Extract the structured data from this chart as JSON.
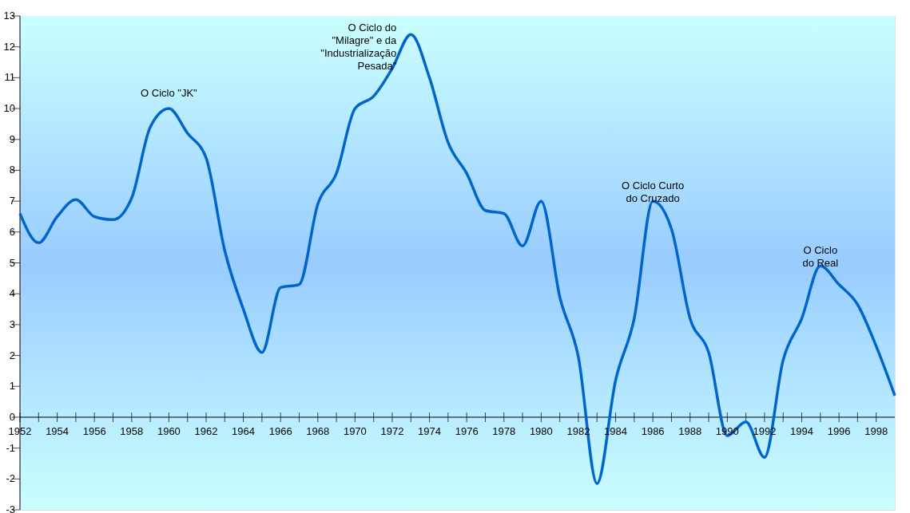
{
  "chart_data": {
    "type": "line",
    "x": [
      1952,
      1953,
      1954,
      1955,
      1956,
      1957,
      1958,
      1959,
      1960,
      1961,
      1962,
      1963,
      1964,
      1965,
      1966,
      1967,
      1968,
      1969,
      1970,
      1971,
      1972,
      1973,
      1974,
      1975,
      1976,
      1977,
      1978,
      1979,
      1980,
      1981,
      1982,
      1983,
      1984,
      1985,
      1986,
      1987,
      1988,
      1989,
      1990,
      1991,
      1992,
      1993,
      1994,
      1995,
      1996,
      1997,
      1998,
      1999
    ],
    "series": [
      {
        "color": "#0066cc",
        "values": [
          6.6,
          5.65,
          6.5,
          7.05,
          6.5,
          6.4,
          7.1,
          9.4,
          10.0,
          9.2,
          8.4,
          5.4,
          3.5,
          2.1,
          4.2,
          4.3,
          6.9,
          7.9,
          10.0,
          10.4,
          11.3,
          12.4,
          11.0,
          8.9,
          7.9,
          6.7,
          6.6,
          5.55,
          7.0,
          3.9,
          1.95,
          -2.15,
          1.2,
          3.2,
          7.0,
          6.1,
          3.2,
          2.1,
          -0.6,
          -0.15,
          -1.3,
          1.85,
          3.2,
          4.9,
          4.3,
          3.65,
          2.3,
          0.7
        ]
      }
    ],
    "xlim": [
      1952,
      1999
    ],
    "xticks": [
      1952,
      {
        "value": 1953,
        "label": null
      },
      1954,
      {
        "value": 1955,
        "label": null
      },
      1956,
      {
        "value": 1957,
        "label": null
      },
      1958,
      {
        "value": 1959,
        "label": null
      },
      1960,
      {
        "value": 1961,
        "label": null
      },
      1962,
      {
        "value": 1963,
        "label": null
      },
      1964,
      {
        "value": 1965,
        "label": null
      },
      1966,
      {
        "value": 1967,
        "label": null
      },
      1968,
      {
        "value": 1969,
        "label": null
      },
      1970,
      {
        "value": 1971,
        "label": null
      },
      1972,
      {
        "value": 1973,
        "label": null
      },
      1974,
      {
        "value": 1975,
        "label": null
      },
      1976,
      {
        "value": 1977,
        "label": null
      },
      1978,
      {
        "value": 1979,
        "label": null
      },
      1980,
      {
        "value": 1981,
        "label": null
      },
      1982,
      {
        "value": 1983,
        "label": null
      },
      1984,
      {
        "value": 1985,
        "label": null
      },
      1986,
      {
        "value": 1987,
        "label": null
      },
      1988,
      {
        "value": 1989,
        "label": null
      },
      1990,
      {
        "value": 1991,
        "label": null
      },
      1992,
      {
        "value": 1993,
        "label": null
      },
      1994,
      {
        "value": 1995,
        "label": null
      },
      1996,
      {
        "value": 1997,
        "label": null
      },
      1998
    ],
    "ylim": [
      -3,
      13
    ],
    "yticks": [
      -3,
      -2,
      -1,
      0,
      1,
      2,
      3,
      4,
      5,
      6,
      7,
      8,
      9,
      10,
      11,
      12,
      13
    ],
    "grid": false,
    "legend": false,
    "marker": "none",
    "line_style": "solid",
    "annotations": [
      {
        "text": "O Ciclo \"JK\"",
        "x": 1960,
        "y": 10.0
      },
      {
        "text": "O Ciclo do\n\"Milagre\" e  da\n\"Industrialização\nPesada\"",
        "x": 1973,
        "y": 12.4
      },
      {
        "text": "O Ciclo Curto\ndo Cruzado",
        "x": 1986,
        "y": 7.0
      },
      {
        "text": "O  Ciclo\ndo  Real",
        "x": 1995,
        "y": 4.9
      }
    ]
  }
}
